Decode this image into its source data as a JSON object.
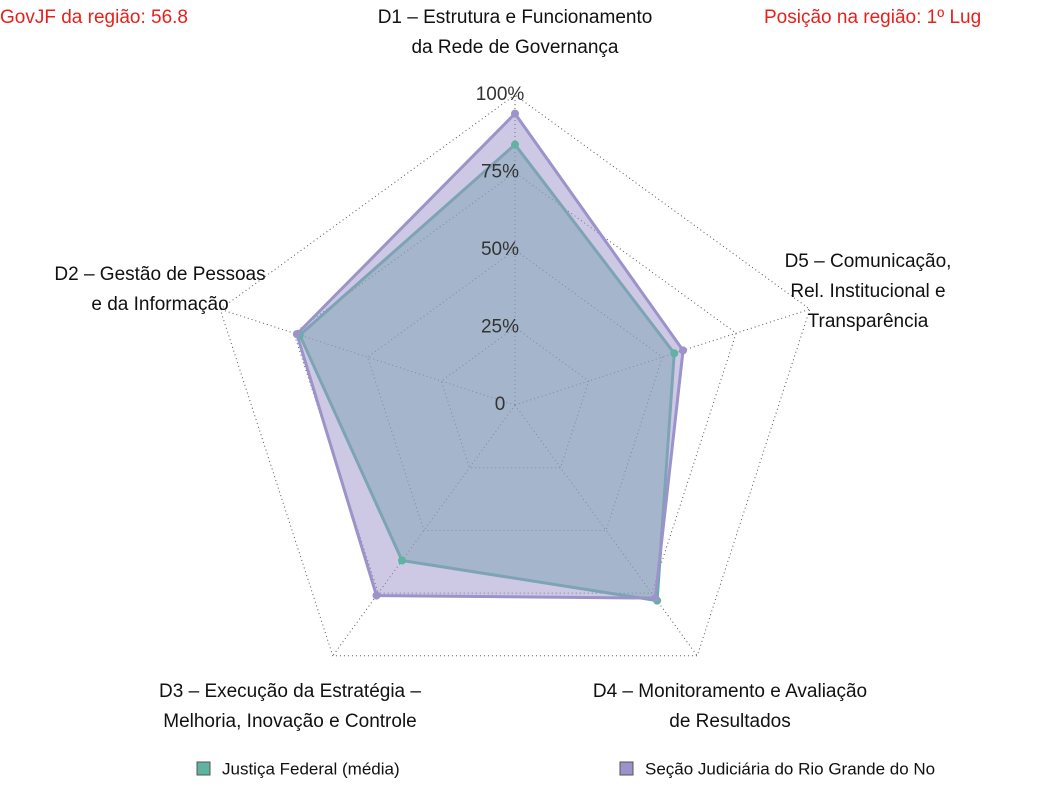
{
  "chart_data": {
    "type": "radar",
    "annotations": [
      "GovJF da região: 56.8",
      "Posição na região: 1º Lug"
    ],
    "categories": [
      [
        "D1 – Estrutura e Funcionamento",
        "da Rede de Governança"
      ],
      [
        "D2 – Gestão de Pessoas",
        "e da Informação"
      ],
      [
        "D3 – Execução da Estratégia –",
        "Melhoria, Inovação e Controle"
      ],
      [
        "D4 – Monitoramento e Avaliação",
        "de Resultados"
      ],
      [
        "D5 – Comunicação,",
        "Rel. Institucional e",
        "Transparência"
      ]
    ],
    "series": [
      {
        "name": "Justiça Federal (média)",
        "color": "#5fb3a0",
        "values": [
          84,
          73,
          62,
          78,
          54
        ]
      },
      {
        "name": "Seção Judiciária do Rio Grande do No",
        "color": "#9b93c9",
        "values": [
          94,
          74,
          76,
          77,
          57
        ]
      }
    ],
    "ylim": [
      0,
      100
    ],
    "yticks": [
      0,
      {
        "value": 25,
        "label": "25%"
      },
      {
        "value": 50,
        "label": "50%"
      },
      {
        "value": 75,
        "label": "75%"
      },
      {
        "value": 100,
        "label": "100%"
      }
    ],
    "grid": true
  }
}
